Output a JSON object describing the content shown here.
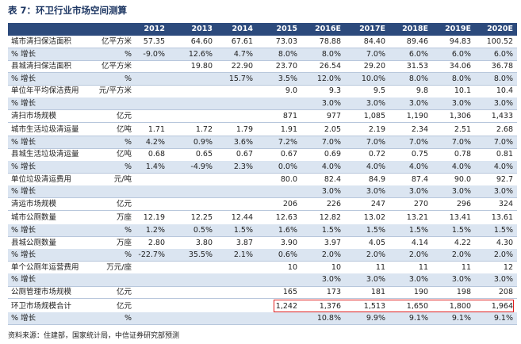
{
  "title": "表 7：环卫行业市场空间测算",
  "table": {
    "columns": [
      "2012",
      "2013",
      "2014",
      "2015",
      "2016E",
      "2017E",
      "2018E",
      "2019E",
      "2020E"
    ],
    "sections": [
      [
        {
          "label": "城市清扫保洁面积",
          "unit": "亿平方米",
          "values": [
            "57.35",
            "64.60",
            "67.61",
            "73.03",
            "78.88",
            "84.40",
            "89.46",
            "94.83",
            "100.52"
          ]
        },
        {
          "label": "% 增长",
          "unit": "%",
          "values": [
            "-9.0%",
            "12.6%",
            "4.7%",
            "8.0%",
            "8.0%",
            "7.0%",
            "6.0%",
            "6.0%",
            "6.0%"
          ]
        },
        {
          "label": "县城清扫保洁面积",
          "unit": "亿平方米",
          "values": [
            null,
            "19.80",
            "22.90",
            "23.70",
            "26.54",
            "29.20",
            "31.53",
            "34.06",
            "36.78"
          ]
        },
        {
          "label": "% 增长",
          "unit": "%",
          "values": [
            null,
            null,
            "15.7%",
            "3.5%",
            "12.0%",
            "10.0%",
            "8.0%",
            "8.0%",
            "8.0%"
          ]
        },
        {
          "label": "单位年平均保洁费用",
          "unit": "元/平方米",
          "values": [
            null,
            null,
            null,
            "9.0",
            "9.3",
            "9.5",
            "9.8",
            "10.1",
            "10.4"
          ]
        },
        {
          "label": "% 增长",
          "unit": null,
          "values": [
            null,
            null,
            null,
            null,
            "3.0%",
            "3.0%",
            "3.0%",
            "3.0%",
            "3.0%"
          ]
        },
        {
          "label": "清扫市场规模",
          "unit": "亿元",
          "values": [
            null,
            null,
            null,
            "871",
            "977",
            "1,085",
            "1,190",
            "1,306",
            "1,433"
          ]
        }
      ],
      [
        {
          "label": "城市生活垃圾清运量",
          "unit": "亿吨",
          "values": [
            "1.71",
            "1.72",
            "1.79",
            "1.91",
            "2.05",
            "2.19",
            "2.34",
            "2.51",
            "2.68"
          ]
        },
        {
          "label": "% 增长",
          "unit": "%",
          "values": [
            "4.2%",
            "0.9%",
            "3.6%",
            "7.2%",
            "7.0%",
            "7.0%",
            "7.0%",
            "7.0%",
            "7.0%"
          ]
        },
        {
          "label": "县城生活垃圾清运量",
          "unit": "亿吨",
          "values": [
            "0.68",
            "0.65",
            "0.67",
            "0.67",
            "0.69",
            "0.72",
            "0.75",
            "0.78",
            "0.81"
          ]
        },
        {
          "label": "% 增长",
          "unit": "%",
          "values": [
            "1.4%",
            "-4.9%",
            "2.3%",
            "0.0%",
            "4.0%",
            "4.0%",
            "4.0%",
            "4.0%",
            "4.0%"
          ]
        },
        {
          "label": "单位垃圾清运费用",
          "unit": "元/吨",
          "values": [
            null,
            null,
            null,
            "80.0",
            "82.4",
            "84.9",
            "87.4",
            "90.0",
            "92.7"
          ]
        },
        {
          "label": "% 增长",
          "unit": null,
          "values": [
            null,
            null,
            null,
            null,
            "3.0%",
            "3.0%",
            "3.0%",
            "3.0%",
            "3.0%"
          ]
        },
        {
          "label": "清运市场规模",
          "unit": "亿元",
          "values": [
            null,
            null,
            null,
            "206",
            "226",
            "247",
            "270",
            "296",
            "324"
          ]
        }
      ],
      [
        {
          "label": "城市公厕数量",
          "unit": "万座",
          "values": [
            "12.19",
            "12.25",
            "12.44",
            "12.63",
            "12.82",
            "13.02",
            "13.21",
            "13.41",
            "13.61"
          ]
        },
        {
          "label": "% 增长",
          "unit": "%",
          "values": [
            "1.2%",
            "0.5%",
            "1.5%",
            "1.6%",
            "1.5%",
            "1.5%",
            "1.5%",
            "1.5%",
            "1.5%"
          ]
        },
        {
          "label": "县城公厕数量",
          "unit": "万座",
          "values": [
            "2.80",
            "3.80",
            "3.87",
            "3.90",
            "3.97",
            "4.05",
            "4.14",
            "4.22",
            "4.30"
          ]
        },
        {
          "label": "% 增长",
          "unit": "%",
          "values": [
            "-22.7%",
            "35.5%",
            "2.1%",
            "0.6%",
            "2.0%",
            "2.0%",
            "2.0%",
            "2.0%",
            "2.0%"
          ]
        },
        {
          "label": "单个公厕年运营费用",
          "unit": "万元/座",
          "values": [
            null,
            null,
            null,
            "10",
            "10",
            "11",
            "11",
            "11",
            "12"
          ]
        },
        {
          "label": "% 增长",
          "unit": null,
          "values": [
            null,
            null,
            null,
            null,
            "3.0%",
            "3.0%",
            "3.0%",
            "3.0%",
            "3.0%"
          ]
        },
        {
          "label": "公厕管理市场规模",
          "unit": "亿元",
          "values": [
            null,
            null,
            null,
            "165",
            "173",
            "181",
            "190",
            "198",
            "208"
          ]
        }
      ],
      [
        {
          "label": "环卫市场规模合计",
          "unit": "亿元",
          "values": [
            null,
            null,
            null,
            "1,242",
            "1,376",
            "1,513",
            "1,650",
            "1,800",
            "1,964"
          ]
        },
        {
          "label": "% 增长",
          "unit": "%",
          "values": [
            null,
            null,
            null,
            null,
            "10.8%",
            "9.9%",
            "9.1%",
            "9.1%",
            "9.1%"
          ]
        }
      ]
    ]
  },
  "source": "资料来源：住建部，国家统计局，中信证券研究部预测"
}
